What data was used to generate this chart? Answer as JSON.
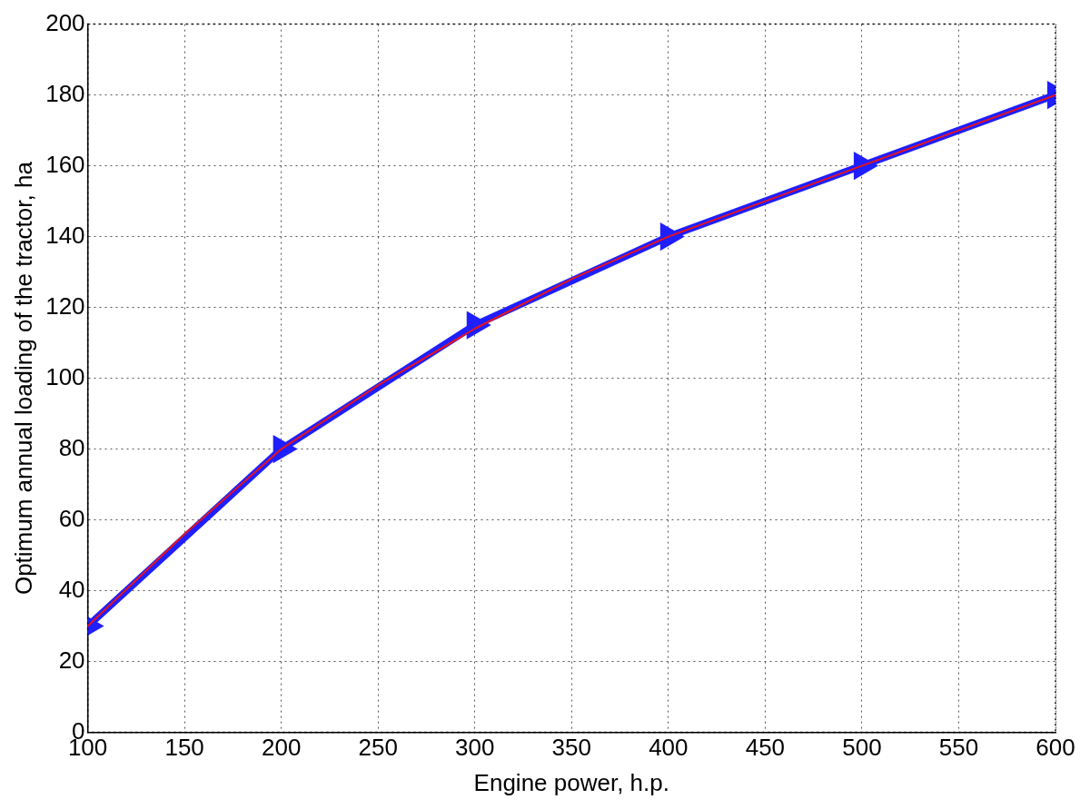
{
  "chart_data": {
    "type": "line",
    "xlabel": "Engine power, h.p.",
    "ylabel": "Optimum annual loading of the tractor, ha",
    "xlim": [
      100,
      600
    ],
    "xticks": [
      100,
      150,
      200,
      250,
      300,
      350,
      400,
      450,
      500,
      550,
      600
    ],
    "ylim": [
      0,
      200
    ],
    "yticks": [
      0,
      20,
      40,
      60,
      80,
      100,
      120,
      140,
      160,
      180,
      200
    ],
    "grid": true,
    "legend": false,
    "series": [
      {
        "color": "#1f1fff",
        "marker": "triangle",
        "x": [
          100,
          200,
          300,
          400,
          500,
          600
        ],
        "values": [
          30,
          80,
          115,
          140,
          160,
          180
        ]
      },
      {
        "color": "#e8131b",
        "marker": "none",
        "x": [
          100,
          150,
          200,
          250,
          300,
          350,
          400,
          450,
          500,
          550,
          600
        ],
        "values": [
          30,
          56,
          80,
          98,
          114,
          128,
          140,
          150,
          160,
          170,
          180
        ]
      }
    ]
  }
}
